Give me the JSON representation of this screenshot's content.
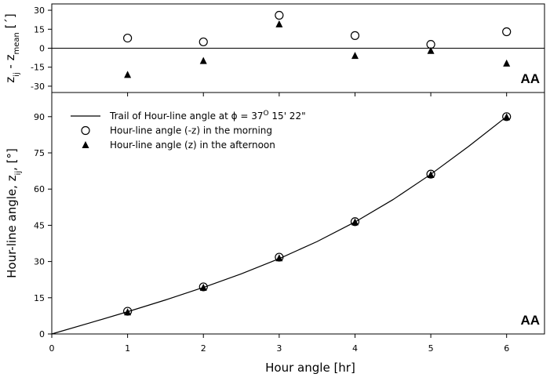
{
  "chart_data": [
    {
      "type": "scatter",
      "ylabel": [
        "z",
        "ij",
        " - z",
        "mean",
        " [´]"
      ],
      "annotation": "AA",
      "xlim": [
        0,
        6.5
      ],
      "xticks": [
        0,
        1,
        2,
        3,
        4,
        5,
        6
      ],
      "ylim": [
        -35,
        35
      ],
      "yticks": [
        30,
        15,
        0,
        -15,
        -30
      ],
      "hline": 0,
      "x": [
        1,
        2,
        3,
        4,
        5,
        6
      ],
      "series": [
        {
          "style": "circle",
          "color": "#000000",
          "values": [
            8,
            5,
            26,
            10,
            3,
            13
          ]
        },
        {
          "style": "triangle",
          "color": "#000000",
          "values": [
            -21,
            -10,
            19,
            -6,
            -2,
            -12
          ]
        }
      ]
    },
    {
      "type": "line",
      "ylabel": [
        "Hour-line angle, z",
        "ij",
        ", [°]"
      ],
      "xlabel": "Hour angle [hr]",
      "annotation": "AA",
      "xlim": [
        0,
        6.5
      ],
      "xticks": [
        0,
        1,
        2,
        3,
        4,
        5,
        6
      ],
      "ylim": [
        0,
        100
      ],
      "yticks": [
        0,
        15,
        30,
        45,
        60,
        75,
        90
      ],
      "x": [
        1,
        2,
        3,
        4,
        5,
        6
      ],
      "series": [
        {
          "style": "line",
          "color": "#000000",
          "name": [
            "Trail of Hour-line angle at  ϕ = 37",
            "O",
            " 15' 22\""
          ],
          "x": [
            0,
            0.5,
            1,
            1.5,
            2,
            2.5,
            3,
            3.5,
            4,
            4.5,
            5,
            5.5,
            6
          ],
          "values": [
            0,
            4.56,
            9.21,
            14.08,
            19.27,
            24.91,
            31.19,
            38.27,
            46.36,
            55.62,
            66.13,
            77.73,
            90
          ]
        },
        {
          "style": "circle",
          "color": "#000000",
          "name": [
            "Hour-line angle (-z) in the morning"
          ],
          "values": [
            9.4,
            19.5,
            31.8,
            46.5,
            66.2,
            90
          ]
        },
        {
          "style": "triangle",
          "color": "#000000",
          "name": [
            "Hour-line angle (z) in the afternoon"
          ],
          "values": [
            9.0,
            19.2,
            31.4,
            46.3,
            65.9,
            89.8
          ]
        }
      ]
    }
  ]
}
